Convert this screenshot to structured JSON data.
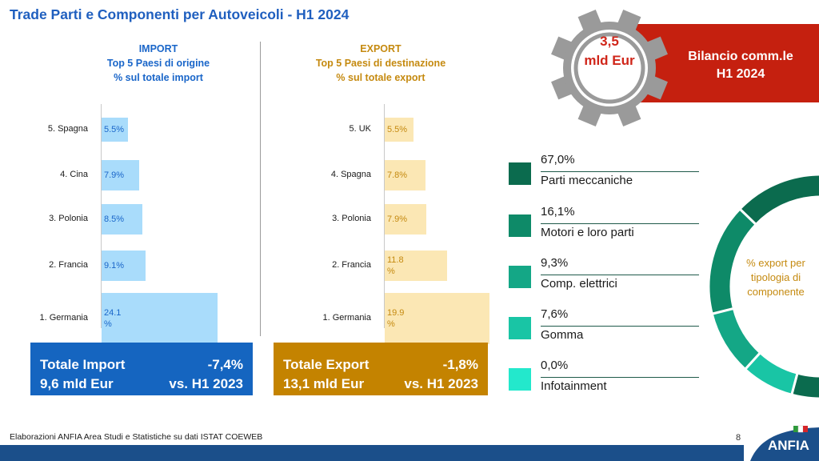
{
  "title": "Trade Parti e Componenti per Autoveicoli - H1 2024",
  "import_header": {
    "line1": "IMPORT",
    "line2": "Top 5 Paesi di origine",
    "line3": "% sul totale import"
  },
  "export_header": {
    "line1": "EXPORT",
    "line2": "Top 5 Paesi di destinazione",
    "line3": "% sul totale export"
  },
  "gear": {
    "line1": "3,5",
    "line2": "mld Eur"
  },
  "balance_box": {
    "line1": "Bilancio comm.le",
    "line2": "H1 2024"
  },
  "import_total": {
    "label": "Totale Import",
    "pct": "-7,4%",
    "value": "9,6 mld Eur",
    "vs": "vs. H1 2023"
  },
  "export_total": {
    "label": "Totale Export",
    "pct": "-1,8%",
    "value": "13,1 mld Eur",
    "vs": "vs. H1 2023"
  },
  "legend": [
    {
      "pct": "67,0%",
      "name": "Parti meccaniche",
      "color": "#0b6b4e"
    },
    {
      "pct": "16,1%",
      "name": "Motori e loro parti",
      "color": "#0e8a68"
    },
    {
      "pct": "9,3%",
      "name": "Comp. elettrici",
      "color": "#14a786"
    },
    {
      "pct": "7,6%",
      "name": "Gomma",
      "color": "#19c5a5"
    },
    {
      "pct": "0,0%",
      "name": "Infotainment",
      "color": "#23e8cc"
    }
  ],
  "donut_label": "% export per tipologia di componente",
  "footer": "Elaborazioni ANFIA Area Studi e Statistiche su dati ISTAT COEWEB",
  "page_number": "8",
  "logo_text": "ANFIA",
  "colors": {
    "import_bar": "#a9dcfb",
    "export_bar": "#fbe7b4",
    "import_text": "#1a66c9",
    "export_text": "#c58a10"
  },
  "chart_data": [
    {
      "type": "bar",
      "orientation": "horizontal",
      "categories": [
        "5. Spagna",
        "4. Cina",
        "3. Polonia",
        "2. Francia",
        "1. Germania"
      ],
      "values": [
        5.5,
        7.9,
        8.5,
        9.1,
        24.1
      ],
      "labels": [
        "5.5%",
        "7.9%",
        "8.5%",
        "9.1%",
        "24.1\n%"
      ]
    },
    {
      "type": "bar",
      "orientation": "horizontal",
      "categories": [
        "5. UK",
        "4. Spagna",
        "3. Polonia",
        "2. Francia",
        "1. Germania"
      ],
      "values": [
        5.5,
        7.8,
        7.9,
        11.8,
        19.9
      ],
      "labels": [
        "5.5%",
        "7.8%",
        "7.9%",
        "11.8\n%",
        "19.9\n%"
      ]
    },
    {
      "type": "pie",
      "categories": [
        "Parti meccaniche",
        "Motori e loro parti",
        "Comp. elettrici",
        "Gomma",
        "Infotainment"
      ],
      "values": [
        67.0,
        16.1,
        9.3,
        7.6,
        0.0
      ]
    }
  ]
}
